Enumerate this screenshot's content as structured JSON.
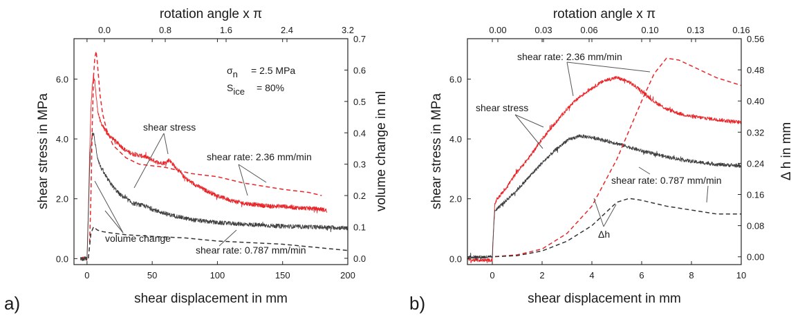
{
  "chart_data": [
    {
      "type": "line",
      "panel_label": "a)",
      "xlabel": "shear displacement in mm",
      "ylabel": "shear stress in MPa",
      "y2label": "volume change in ml",
      "x2label": "rotation angle x π",
      "xlim": [
        -10,
        200
      ],
      "ylim": [
        -0.2,
        7.35
      ],
      "y2lim": [
        -0.02,
        0.7
      ],
      "x2lim": [
        -0.4,
        3.2
      ],
      "xticks": [
        "0",
        "50",
        "100",
        "150",
        "200"
      ],
      "yticks": [
        "0.0",
        "2.0",
        "4.0",
        "6.0"
      ],
      "y2ticks": [
        "0.0",
        "0.1",
        "0.2",
        "0.3",
        "0.4",
        "0.5",
        "0.6",
        "0.7"
      ],
      "x2ticks": [
        "0.0",
        "0.8",
        "1.6",
        "2.4",
        "3.2"
      ],
      "annotations": {
        "sigma_symbol": "σ",
        "sigma_sub": "n",
        "sigma_value": "= 2.5 MPa",
        "s_symbol": "S",
        "s_sub": "ice",
        "s_value": "= 80%",
        "shear_stress": "shear stress",
        "rate_fast": "shear rate: 2.36 mm/min",
        "rate_slow": "shear rate: 0.787 mm/min",
        "volume_change": "volume change"
      },
      "series": [
        {
          "color": "#e8262a",
          "style": "noisy",
          "axis": "y",
          "noise": 0.07,
          "x": [
            -5,
            0,
            1,
            2,
            3,
            4,
            5,
            6,
            8,
            10,
            15,
            20,
            25,
            30,
            35,
            40,
            45,
            50,
            55,
            60,
            63,
            66,
            70,
            75,
            80,
            90,
            100,
            110,
            120,
            130,
            140,
            150,
            160,
            170,
            180,
            184
          ],
          "y": [
            0.0,
            0.0,
            1.5,
            3.5,
            5.0,
            5.8,
            6.1,
            5.9,
            5.0,
            4.6,
            4.2,
            4.0,
            3.8,
            3.6,
            3.5,
            3.45,
            3.4,
            3.3,
            3.2,
            3.2,
            3.3,
            3.15,
            2.95,
            2.7,
            2.55,
            2.3,
            2.1,
            1.95,
            1.85,
            1.8,
            1.75,
            1.75,
            1.7,
            1.68,
            1.65,
            1.6
          ]
        },
        {
          "color": "#404040",
          "style": "noisy",
          "axis": "y",
          "noise": 0.07,
          "x": [
            -5,
            0,
            1,
            2,
            3,
            4,
            5,
            6,
            8,
            10,
            15,
            20,
            25,
            30,
            35,
            40,
            45,
            50,
            60,
            70,
            80,
            100,
            120,
            140,
            160,
            180,
            200
          ],
          "y": [
            0.0,
            0.0,
            1.5,
            3.0,
            3.8,
            4.1,
            4.2,
            3.9,
            3.4,
            3.1,
            2.7,
            2.4,
            2.15,
            2.0,
            1.85,
            1.8,
            1.75,
            1.65,
            1.5,
            1.4,
            1.3,
            1.2,
            1.15,
            1.1,
            1.07,
            1.05,
            1.02
          ]
        },
        {
          "color": "#e8262a",
          "style": "dashed",
          "axis": "y2",
          "x": [
            2,
            3,
            4,
            5,
            6,
            7,
            8,
            10,
            12,
            15,
            20,
            30,
            40,
            60,
            80,
            100,
            120,
            150,
            170,
            180
          ],
          "y": [
            0.05,
            0.2,
            0.42,
            0.58,
            0.64,
            0.66,
            0.62,
            0.52,
            0.46,
            0.41,
            0.36,
            0.32,
            0.3,
            0.29,
            0.27,
            0.26,
            0.24,
            0.22,
            0.21,
            0.2
          ]
        },
        {
          "color": "#333333",
          "style": "dashed",
          "axis": "y2",
          "x": [
            1,
            2,
            3,
            5,
            8,
            12,
            20,
            30,
            50,
            75,
            100,
            125,
            150,
            175,
            200
          ],
          "y": [
            0.0,
            0.04,
            0.08,
            0.1,
            0.09,
            0.085,
            0.08,
            0.075,
            0.07,
            0.065,
            0.055,
            0.05,
            0.045,
            0.035,
            0.025
          ]
        }
      ]
    },
    {
      "type": "line",
      "panel_label": "b)",
      "xlabel": "shear displacement in mm",
      "ylabel": "shear stress in MPa",
      "y2label": "Δ h in mm",
      "x2label": "rotation angle x π",
      "xlim": [
        -1,
        10
      ],
      "ylim": [
        -0.2,
        7.35
      ],
      "y2lim": [
        -0.02,
        0.56
      ],
      "x2lim": [
        -0.02,
        0.16
      ],
      "xticks": [
        "0",
        "2",
        "4",
        "6",
        "8",
        "10"
      ],
      "yticks": [
        "0.0",
        "2.0",
        "4.0",
        "6.0"
      ],
      "y2ticks": [
        "0.00",
        "0.08",
        "0.16",
        "0.24",
        "0.32",
        "0.40",
        "0.48",
        "0.56"
      ],
      "x2ticks": [
        "0.00",
        "0.03",
        "0.06",
        "0.10",
        "0.13",
        "0.16"
      ],
      "annotations": {
        "rate_fast": "shear rate: 2.36 mm/min",
        "shear_stress": "shear stress",
        "rate_slow": "shear rate: 0.787 mm/min",
        "delta_h": "Δh"
      },
      "series": [
        {
          "color": "#e8262a",
          "style": "noisy",
          "axis": "y",
          "noise": 0.06,
          "x": [
            -1,
            0,
            0.05,
            0.1,
            0.2,
            0.5,
            1.0,
            1.5,
            2.0,
            2.5,
            3.0,
            3.5,
            4.0,
            4.5,
            5.0,
            5.5,
            6.0,
            6.5,
            7.0,
            7.5,
            8.0,
            9.0,
            10.0
          ],
          "y": [
            -0.05,
            -0.05,
            1.0,
            1.8,
            2.0,
            2.3,
            2.9,
            3.4,
            4.0,
            4.5,
            5.0,
            5.4,
            5.7,
            5.95,
            6.05,
            5.9,
            5.6,
            5.25,
            5.0,
            4.85,
            4.75,
            4.65,
            4.55
          ]
        },
        {
          "color": "#404040",
          "style": "noisy",
          "axis": "y",
          "noise": 0.06,
          "x": [
            -1,
            0,
            0.05,
            0.1,
            0.5,
            1.0,
            1.5,
            2.0,
            2.5,
            3.0,
            3.5,
            4.0,
            5.0,
            6.0,
            7.0,
            8.0,
            9.0,
            10.0
          ],
          "y": [
            0.05,
            0.05,
            1.0,
            1.6,
            1.9,
            2.3,
            2.75,
            3.2,
            3.6,
            3.95,
            4.1,
            4.05,
            3.85,
            3.6,
            3.4,
            3.25,
            3.15,
            3.1
          ]
        },
        {
          "color": "#e8262a",
          "style": "dashed",
          "axis": "y2",
          "x": [
            -1,
            0,
            1,
            2,
            3,
            4,
            5,
            6,
            6.5,
            7,
            7.5,
            8,
            9,
            10
          ],
          "y": [
            0.0,
            0.0,
            0.005,
            0.02,
            0.06,
            0.13,
            0.25,
            0.4,
            0.47,
            0.51,
            0.505,
            0.49,
            0.46,
            0.44
          ]
        },
        {
          "color": "#333333",
          "style": "dashed",
          "axis": "y2",
          "x": [
            -1,
            0,
            1,
            2,
            3,
            4,
            5,
            5.5,
            6,
            7,
            8,
            9,
            10
          ],
          "y": [
            0.0,
            0.0,
            0.003,
            0.015,
            0.04,
            0.08,
            0.14,
            0.15,
            0.145,
            0.13,
            0.12,
            0.11,
            0.11
          ]
        }
      ]
    }
  ]
}
